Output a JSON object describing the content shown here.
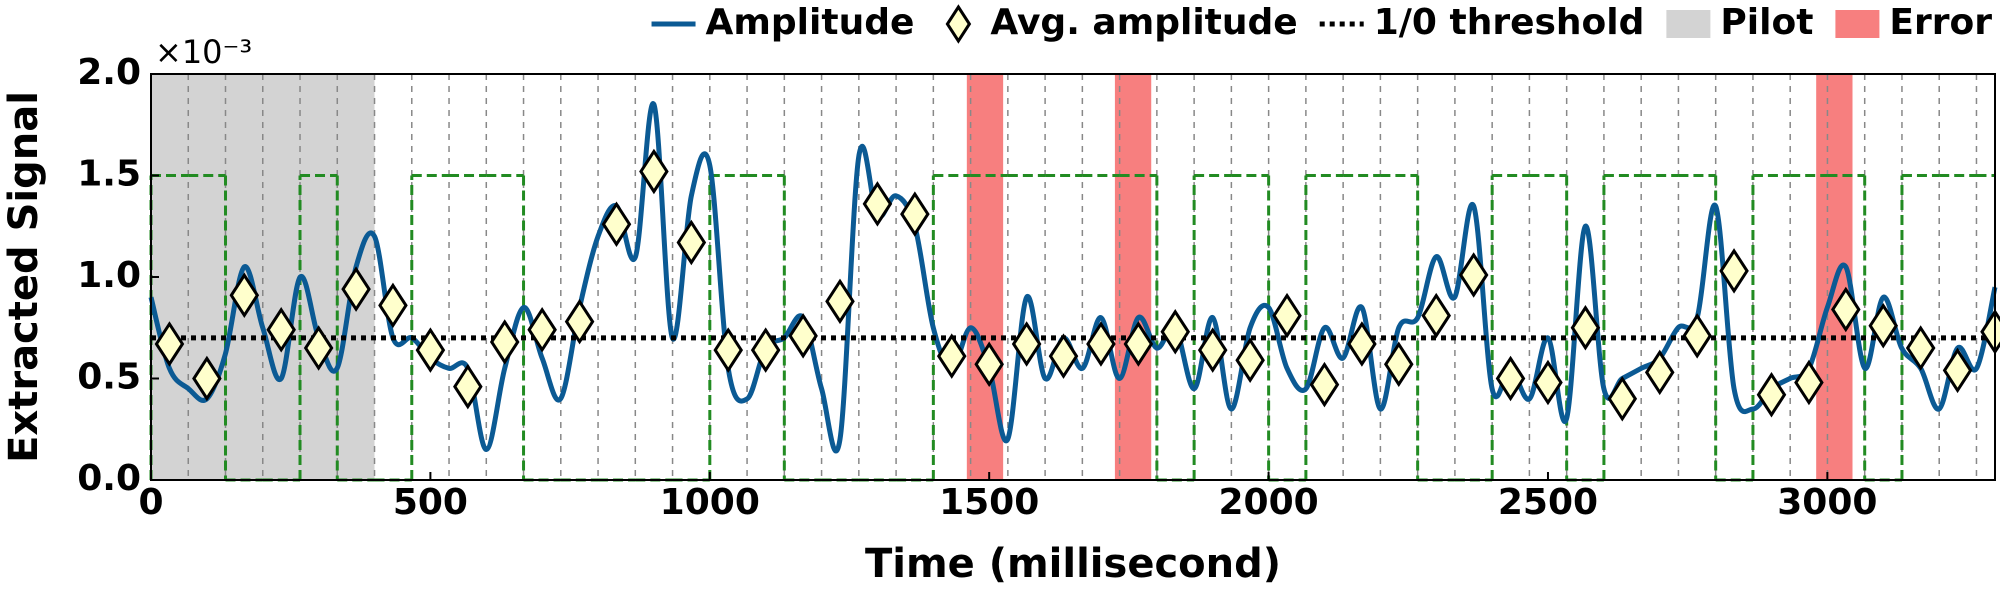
{
  "chart_data": {
    "type": "line",
    "x_label": "Time (millisecond)",
    "y_label": "Extracted Signal",
    "y_scale_label": "×10⁻³",
    "xlim": [
      0,
      3300
    ],
    "ylim": [
      0,
      2
    ],
    "xticks": [
      0,
      500,
      1000,
      1500,
      2000,
      2500,
      3000
    ],
    "yticks": [
      {
        "value": 0,
        "label": "0.0"
      },
      0.5,
      {
        "value": 1,
        "label": "1.0"
      },
      1.5,
      {
        "value": 2,
        "label": "2.0"
      }
    ],
    "legend": "upper right",
    "series": [
      {
        "name": "Amplitude",
        "color": "#0b5a94",
        "x": [
          0,
          33,
          67,
          100,
          133,
          167,
          200,
          233,
          267,
          300,
          333,
          367,
          400,
          433,
          467,
          500,
          533,
          567,
          600,
          633,
          667,
          700,
          733,
          767,
          800,
          833,
          867,
          900,
          933,
          967,
          1000,
          1033,
          1067,
          1100,
          1133,
          1167,
          1200,
          1233,
          1267,
          1300,
          1333,
          1367,
          1400,
          1433,
          1467,
          1500,
          1533,
          1567,
          1600,
          1633,
          1667,
          1700,
          1733,
          1767,
          1800,
          1833,
          1867,
          1900,
          1933,
          1967,
          2000,
          2033,
          2067,
          2100,
          2133,
          2167,
          2200,
          2233,
          2267,
          2300,
          2333,
          2367,
          2400,
          2433,
          2467,
          2500,
          2533,
          2567,
          2600,
          2633,
          2667,
          2700,
          2733,
          2767,
          2800,
          2833,
          2867,
          2900,
          2933,
          2967,
          3000,
          3033,
          3067,
          3100,
          3133,
          3167,
          3200,
          3233,
          3267,
          3300
        ],
        "values": [
          0.9,
          0.55,
          0.45,
          0.4,
          0.62,
          1.05,
          0.75,
          0.5,
          1.0,
          0.7,
          0.55,
          1.05,
          1.2,
          0.7,
          0.7,
          0.6,
          0.55,
          0.55,
          0.15,
          0.55,
          0.85,
          0.6,
          0.4,
          0.85,
          1.2,
          1.35,
          1.1,
          1.85,
          0.7,
          1.4,
          1.55,
          0.55,
          0.4,
          0.65,
          0.7,
          0.8,
          0.45,
          0.2,
          1.6,
          1.3,
          1.4,
          1.25,
          0.75,
          0.55,
          0.75,
          0.55,
          0.2,
          0.9,
          0.5,
          0.7,
          0.55,
          0.8,
          0.5,
          0.8,
          0.65,
          0.75,
          0.45,
          0.8,
          0.35,
          0.75,
          0.85,
          0.55,
          0.45,
          0.75,
          0.6,
          0.85,
          0.35,
          0.75,
          0.8,
          1.1,
          0.9,
          1.35,
          0.45,
          0.55,
          0.4,
          0.7,
          0.3,
          1.25,
          0.45,
          0.5,
          0.55,
          0.6,
          0.75,
          0.8,
          1.35,
          0.45,
          0.35,
          0.45,
          0.5,
          0.55,
          0.85,
          1.05,
          0.55,
          0.9,
          0.65,
          0.55,
          0.35,
          0.65,
          0.55,
          0.95
        ]
      },
      {
        "name": "Avg. amplitude",
        "color": "#ffffcc",
        "marker": "diamond",
        "x": [
          33,
          100,
          167,
          233,
          300,
          367,
          433,
          500,
          567,
          633,
          700,
          767,
          833,
          900,
          967,
          1033,
          1100,
          1167,
          1233,
          1300,
          1367,
          1433,
          1500,
          1567,
          1633,
          1700,
          1767,
          1833,
          1900,
          1967,
          2033,
          2100,
          2167,
          2233,
          2300,
          2367,
          2433,
          2500,
          2567,
          2633,
          2700,
          2767,
          2833,
          2900,
          2967,
          3033,
          3100,
          3167,
          3233,
          3300
        ],
        "values": [
          0.67,
          0.5,
          0.91,
          0.74,
          0.65,
          0.94,
          0.86,
          0.64,
          0.46,
          0.68,
          0.74,
          0.78,
          1.26,
          1.52,
          1.17,
          0.64,
          0.64,
          0.71,
          0.88,
          1.36,
          1.31,
          0.61,
          0.57,
          0.67,
          0.61,
          0.67,
          0.67,
          0.73,
          0.64,
          0.59,
          0.81,
          0.47,
          0.67,
          0.57,
          0.81,
          1.01,
          0.5,
          0.48,
          0.75,
          0.4,
          0.53,
          0.71,
          1.03,
          0.42,
          0.48,
          0.84,
          0.76,
          0.65,
          0.54,
          0.73
        ]
      }
    ],
    "threshold": {
      "name": "1/0 threshold",
      "value": 0.7,
      "color": "#000000"
    },
    "pilot": {
      "name": "Pilot",
      "color": "#d3d3d3",
      "spans": [
        [
          0,
          400
        ]
      ]
    },
    "error": {
      "name": "Error",
      "color": "#f77f7f",
      "spans": [
        [
          1460,
          1525
        ],
        [
          1725,
          1790
        ],
        [
          2980,
          3045
        ]
      ]
    },
    "bit_duration": 66.67,
    "bit_signal": {
      "color": "#228b22",
      "values": [
        1.5,
        1.5,
        0,
        0,
        1.5,
        0,
        0,
        1.5,
        1.5,
        1.5,
        0,
        0,
        0,
        0,
        0,
        1.5,
        1.5,
        0,
        0,
        0,
        0,
        1.5,
        1.5,
        1.5,
        1.5,
        1.5,
        1.5,
        0,
        1.5,
        1.5,
        0,
        1.5,
        1.5,
        1.5,
        0,
        0,
        1.5,
        1.5,
        0,
        1.5,
        1.5,
        1.5,
        0,
        1.5,
        1.5,
        1.5,
        0,
        1.5,
        1.5,
        1.5
      ]
    }
  }
}
